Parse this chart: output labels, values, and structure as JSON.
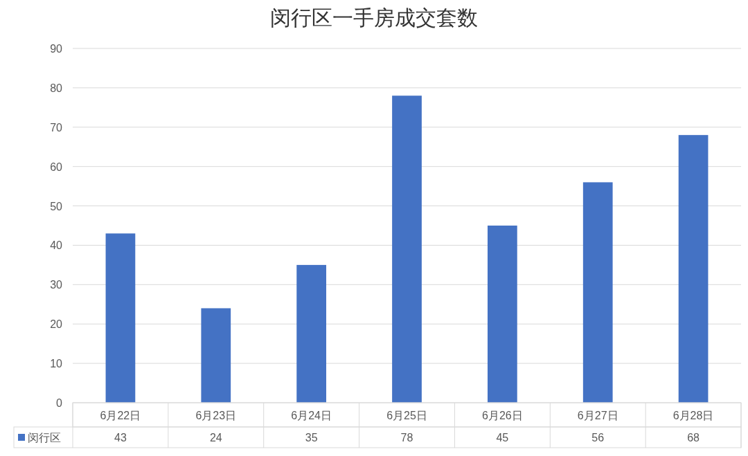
{
  "chart_data": {
    "type": "bar",
    "title": "闵行区一手房成交套数",
    "categories": [
      "6月22日",
      "6月23日",
      "6月24日",
      "6月25日",
      "6月26日",
      "6月27日",
      "6月28日"
    ],
    "series": [
      {
        "name": "闵行区",
        "color": "#4472c4",
        "values": [
          43,
          24,
          35,
          78,
          45,
          56,
          68
        ]
      }
    ],
    "ylim": [
      0,
      90
    ],
    "yticks": [
      0,
      10,
      20,
      30,
      40,
      50,
      60,
      70,
      80,
      90
    ],
    "grid": "y",
    "data_labels": true,
    "legend": "bottom"
  }
}
